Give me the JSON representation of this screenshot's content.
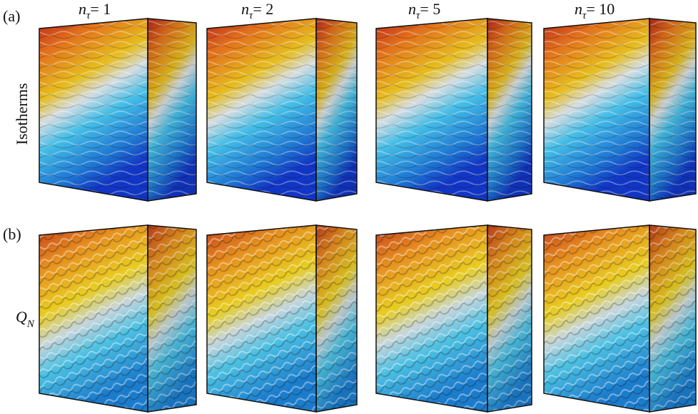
{
  "panels": [
    {
      "label": "(a)",
      "title": "Isotherms"
    },
    {
      "label": "(b)",
      "title": {
        "symbol": "Q",
        "subscript": "N"
      }
    }
  ],
  "columns": [
    {
      "symbol": "n",
      "subscript": "τ",
      "rhs": "= 1"
    },
    {
      "symbol": "n",
      "subscript": "τ",
      "rhs": "= 2"
    },
    {
      "symbol": "n",
      "subscript": "τ",
      "rhs": "= 5"
    },
    {
      "symbol": "n",
      "subscript": "τ",
      "rhs": "= 10"
    }
  ]
}
